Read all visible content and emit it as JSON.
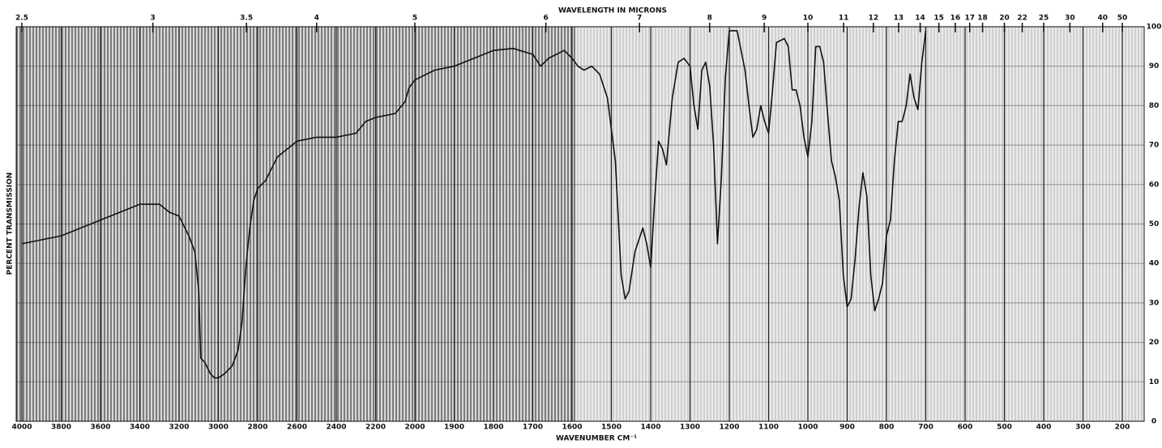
{
  "chart_data": {
    "type": "line",
    "xlabel": "WAVENUMBER CM⁻¹",
    "x2label": "WAVELENGTH IN MICRONS",
    "ylabel": "PERCENT TRANSMISSION",
    "xlim": [
      4000,
      200
    ],
    "xticks": [
      4000,
      3800,
      3600,
      3400,
      3200,
      3000,
      2800,
      2600,
      2400,
      2200,
      2000,
      1900,
      1800,
      1700,
      1600,
      1500,
      1400,
      1300,
      1200,
      1100,
      1000,
      900,
      800,
      700,
      600,
      500,
      400,
      300,
      200
    ],
    "x2ticks": [
      2.5,
      3,
      3.5,
      4,
      5,
      6,
      7,
      8,
      9,
      10,
      11,
      12,
      13,
      14,
      15,
      16,
      17,
      18,
      20,
      22,
      25,
      30,
      40,
      50
    ],
    "ylim": [
      0,
      100
    ],
    "yticks": [
      0,
      10,
      20,
      30,
      40,
      50,
      60,
      70,
      80,
      90,
      100
    ],
    "grid": true,
    "color": "#111111",
    "x": [
      4000,
      3800,
      3600,
      3500,
      3400,
      3300,
      3250,
      3200,
      3150,
      3120,
      3100,
      3090,
      3070,
      3040,
      3020,
      3000,
      2970,
      2930,
      2900,
      2880,
      2860,
      2840,
      2820,
      2800,
      2760,
      2700,
      2600,
      2500,
      2400,
      2300,
      2250,
      2200,
      2100,
      2050,
      2030,
      2000,
      1950,
      1900,
      1850,
      1800,
      1750,
      1700,
      1680,
      1660,
      1640,
      1620,
      1600,
      1585,
      1570,
      1550,
      1530,
      1510,
      1490,
      1475,
      1465,
      1455,
      1440,
      1420,
      1410,
      1400,
      1390,
      1380,
      1370,
      1360,
      1345,
      1330,
      1315,
      1300,
      1290,
      1280,
      1270,
      1260,
      1250,
      1240,
      1230,
      1220,
      1210,
      1200,
      1180,
      1160,
      1150,
      1140,
      1130,
      1120,
      1110,
      1100,
      1090,
      1080,
      1060,
      1050,
      1040,
      1030,
      1020,
      1010,
      1000,
      990,
      980,
      970,
      960,
      950,
      940,
      930,
      920,
      910,
      900,
      890,
      880,
      870,
      860,
      850,
      840,
      830,
      820,
      810,
      800,
      790,
      780,
      770,
      760,
      750,
      740,
      730,
      720,
      710,
      700
    ],
    "values": [
      45,
      47,
      51,
      53,
      55,
      55,
      53,
      52,
      47,
      43,
      33,
      16,
      15,
      12,
      11,
      11,
      12,
      14,
      18,
      25,
      39,
      49,
      56,
      59,
      61,
      67,
      71,
      72,
      72,
      73,
      76,
      77,
      78,
      81,
      84.5,
      86.5,
      89,
      90,
      92,
      94,
      94.5,
      93,
      90,
      92,
      93,
      94,
      92,
      90,
      89,
      90,
      88,
      82,
      66,
      37,
      31,
      33,
      43,
      49,
      45,
      39,
      56,
      71,
      69,
      65,
      82,
      91,
      92,
      90,
      80,
      74,
      89,
      91,
      85,
      70,
      45,
      62,
      87,
      99,
      99,
      89,
      80,
      72,
      74,
      80,
      76,
      73,
      84,
      96,
      97,
      95,
      84,
      84,
      80,
      72,
      67,
      76,
      95,
      95,
      91,
      78,
      66,
      62,
      56,
      37,
      29,
      31,
      41,
      54,
      63,
      57,
      37,
      28,
      31,
      35,
      47,
      51,
      66,
      76,
      76,
      80,
      88,
      82,
      79,
      91,
      99
    ]
  }
}
